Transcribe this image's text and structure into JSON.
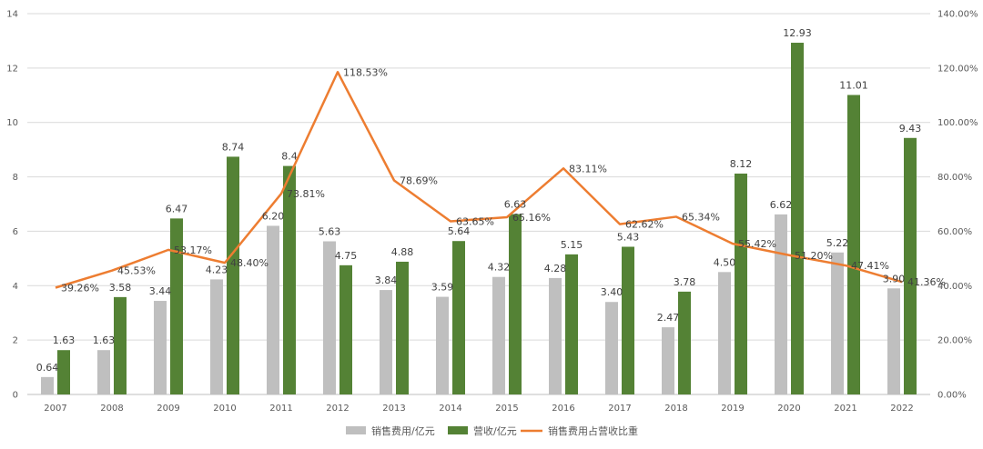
{
  "chart_data": {
    "type": "bar",
    "categories": [
      "2007",
      "2008",
      "2009",
      "2010",
      "2011",
      "2012",
      "2013",
      "2014",
      "2015",
      "2016",
      "2017",
      "2018",
      "2019",
      "2020",
      "2021",
      "2022"
    ],
    "series": [
      {
        "name": "销售费用/亿元",
        "kind": "bar",
        "axis": "left",
        "color": "#bfbfbf",
        "values": [
          0.64,
          1.63,
          3.44,
          4.23,
          6.2,
          5.63,
          3.84,
          3.59,
          4.32,
          4.28,
          3.4,
          2.47,
          4.5,
          6.62,
          5.22,
          3.9
        ],
        "labels": [
          "0.64",
          "1.63",
          "3.44",
          "4.23",
          "6.20",
          "5.63",
          "3.84",
          "3.59",
          "4.32",
          "4.28",
          "3.40",
          "2.47",
          "4.50",
          "6.62",
          "5.22",
          "3.90"
        ]
      },
      {
        "name": "营收/亿元",
        "kind": "bar",
        "axis": "left",
        "color": "#548235",
        "values": [
          1.63,
          3.58,
          6.47,
          8.74,
          8.4,
          4.75,
          4.88,
          5.64,
          6.63,
          5.15,
          5.43,
          3.78,
          8.12,
          12.93,
          11.01,
          9.43
        ],
        "labels": [
          "1.63",
          "3.58",
          "6.47",
          "8.74",
          "8.4",
          "4.75",
          "4.88",
          "5.64",
          "6.63",
          "5.15",
          "5.43",
          "3.78",
          "8.12",
          "12.93",
          "11.01",
          "9.43"
        ]
      },
      {
        "name": "销售费用占营收比重",
        "kind": "line",
        "axis": "right",
        "color": "#ed7d31",
        "values": [
          39.26,
          45.53,
          53.17,
          48.4,
          73.81,
          118.53,
          78.69,
          63.65,
          65.16,
          83.11,
          62.62,
          65.34,
          55.42,
          51.2,
          47.41,
          41.36
        ],
        "labels": [
          "39.26%",
          "45.53%",
          "53.17%",
          "48.40%",
          "73.81%",
          "118.53%",
          "78.69%",
          "63.65%",
          "65.16%",
          "83.11%",
          "62.62%",
          "65.34%",
          "55.42%",
          "51.20%",
          "47.41%",
          "41.36%"
        ]
      }
    ],
    "left_axis": {
      "ticks": [
        "0",
        "2",
        "4",
        "6",
        "8",
        "10",
        "12",
        "14"
      ],
      "ylim": [
        0,
        14
      ]
    },
    "right_axis": {
      "ticks": [
        "0.00%",
        "20.00%",
        "40.00%",
        "60.00%",
        "80.00%",
        "100.00%",
        "120.00%",
        "140.00%"
      ],
      "ylim": [
        0,
        140
      ]
    },
    "grid": true,
    "legend_position": "bottom"
  }
}
